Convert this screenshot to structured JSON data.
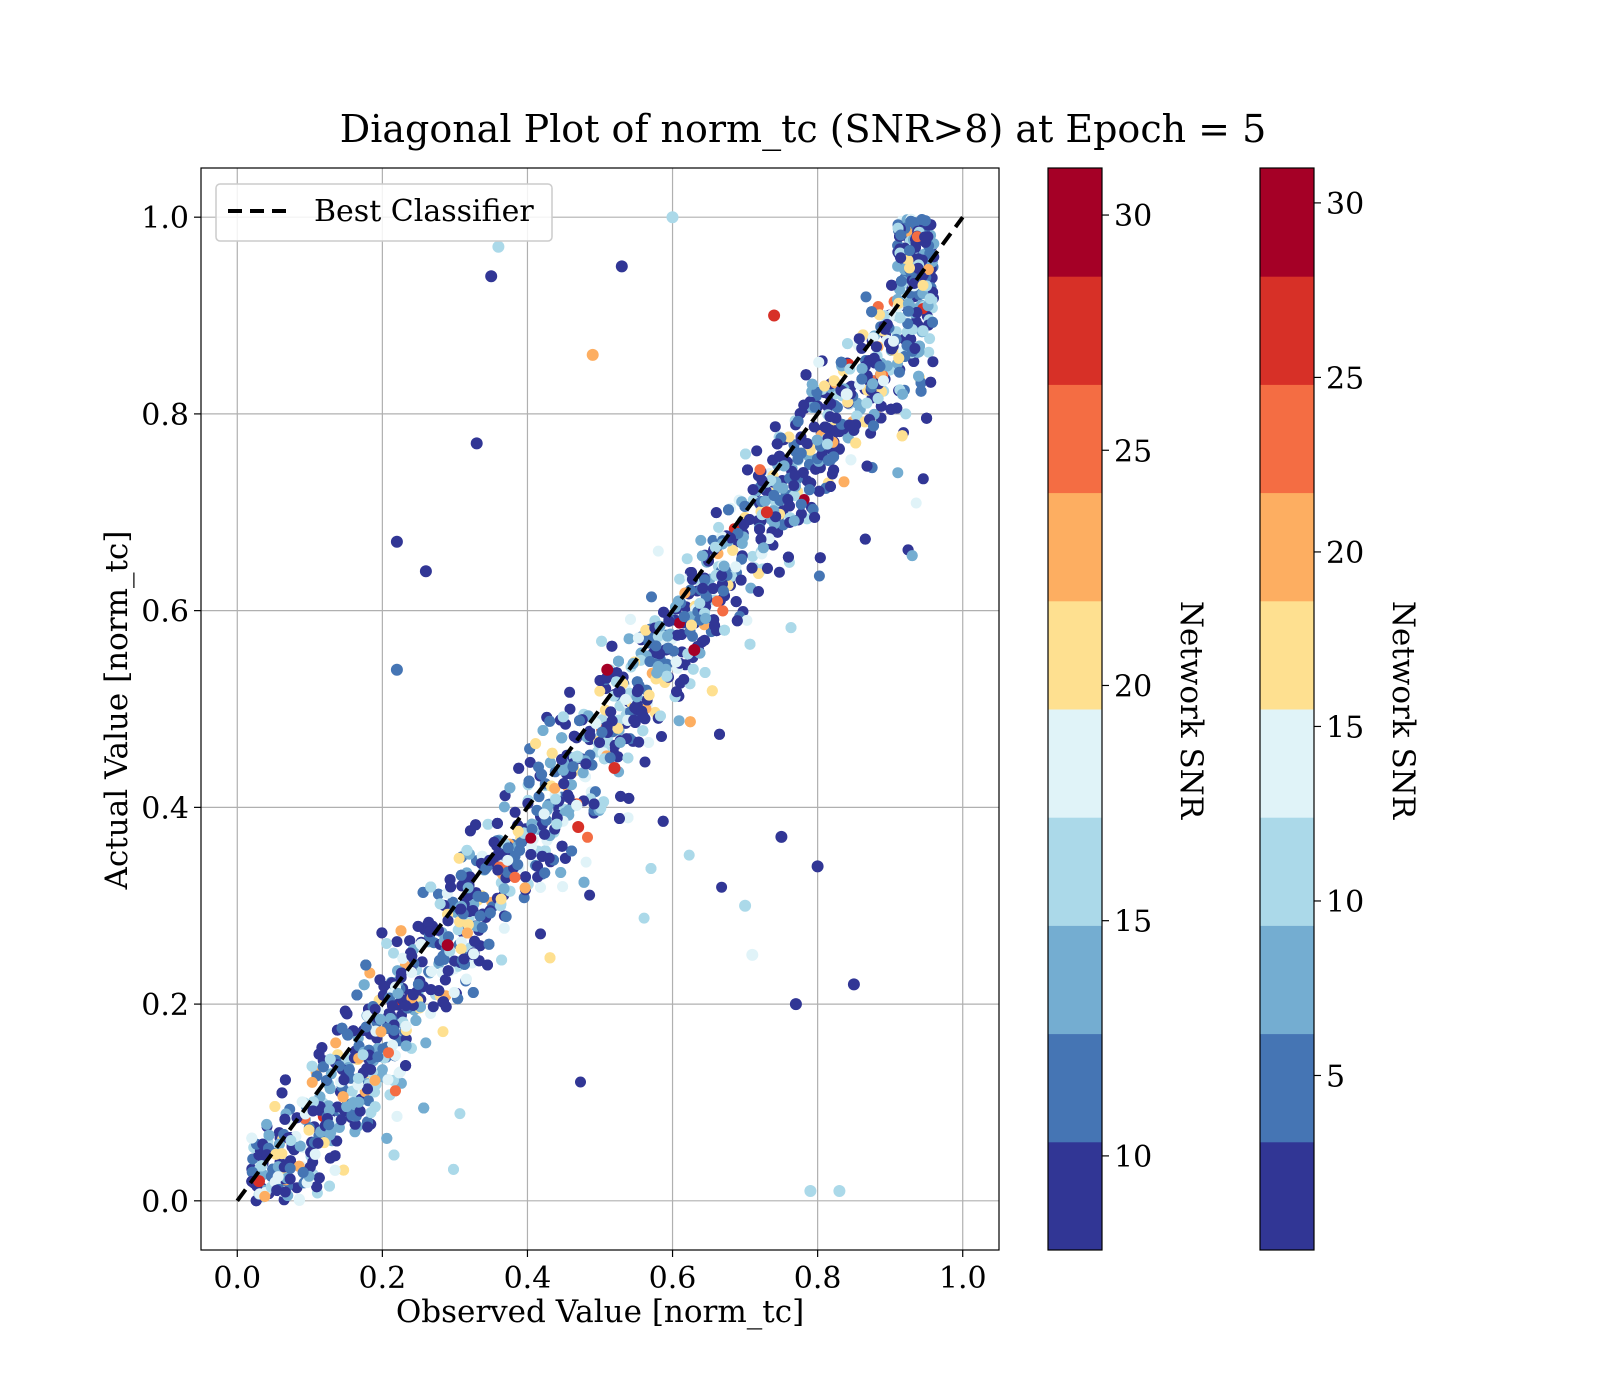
{
  "chart_data": {
    "type": "scatter",
    "title": "Diagonal Plot of norm_tc (SNR>8) at Epoch = 5",
    "xlabel": "Observed Value [norm_tc]",
    "ylabel": "Actual Value [norm_tc]",
    "xlim": [
      -0.05,
      1.05
    ],
    "ylim": [
      -0.05,
      1.05
    ],
    "xticks": [
      "0.0",
      "0.2",
      "0.4",
      "0.6",
      "0.8",
      "1.0"
    ],
    "yticks": [
      "0.0",
      "0.2",
      "0.4",
      "0.6",
      "0.8",
      "1.0"
    ],
    "grid": true,
    "legend": {
      "placement": "upper-left",
      "entries": [
        {
          "label": "Best Classifier",
          "style": "black dashed line"
        }
      ]
    },
    "reference_line": {
      "label": "Best Classifier",
      "x": [
        0.0,
        1.0
      ],
      "y": [
        0.0,
        1.0
      ],
      "color": "#000000"
    },
    "colormap": "RdYlBu_r discrete (10 bins)",
    "bin_colors": [
      "#313695",
      "#4575b4",
      "#74add1",
      "#abd9e9",
      "#e0f3f8",
      "#fee090",
      "#fdae61",
      "#f46d43",
      "#d73027",
      "#a50026"
    ],
    "colorbars": [
      {
        "label": "Network SNR",
        "range": [
          8,
          31
        ],
        "ticks": [
          "10",
          "15",
          "20",
          "25",
          "30"
        ]
      },
      {
        "label": "Network SNR",
        "range": [
          0,
          31
        ],
        "ticks": [
          "5",
          "10",
          "15",
          "20",
          "25",
          "30"
        ]
      }
    ],
    "notable_points": [
      {
        "x": 0.36,
        "y": 0.97,
        "snr": 16
      },
      {
        "x": 0.35,
        "y": 0.94,
        "snr": 10
      },
      {
        "x": 0.33,
        "y": 0.77,
        "snr": 10
      },
      {
        "x": 0.22,
        "y": 0.67,
        "snr": 9
      },
      {
        "x": 0.26,
        "y": 0.64,
        "snr": 9
      },
      {
        "x": 0.22,
        "y": 0.54,
        "snr": 12
      },
      {
        "x": 0.49,
        "y": 0.86,
        "snr": 22
      },
      {
        "x": 0.53,
        "y": 0.95,
        "snr": 9
      },
      {
        "x": 0.29,
        "y": 0.26,
        "snr": 30
      },
      {
        "x": 0.63,
        "y": 0.56,
        "snr": 30
      },
      {
        "x": 0.51,
        "y": 0.54,
        "snr": 30
      },
      {
        "x": 0.47,
        "y": 0.38,
        "snr": 28
      },
      {
        "x": 0.52,
        "y": 0.44,
        "snr": 28
      },
      {
        "x": 0.74,
        "y": 0.9,
        "snr": 28
      },
      {
        "x": 0.73,
        "y": 0.7,
        "snr": 28
      },
      {
        "x": 0.85,
        "y": 0.22,
        "snr": 10
      },
      {
        "x": 0.8,
        "y": 0.34,
        "snr": 10
      },
      {
        "x": 0.77,
        "y": 0.2,
        "snr": 10
      },
      {
        "x": 0.75,
        "y": 0.37,
        "snr": 10
      },
      {
        "x": 0.79,
        "y": 0.01,
        "snr": 15
      },
      {
        "x": 0.83,
        "y": 0.01,
        "snr": 17
      },
      {
        "x": 0.03,
        "y": 0.02,
        "snr": 28
      },
      {
        "x": 0.71,
        "y": 0.25,
        "snr": 18
      },
      {
        "x": 0.7,
        "y": 0.3,
        "snr": 16
      },
      {
        "x": 0.6,
        "y": 1.0,
        "snr": 15
      },
      {
        "x": 0.84,
        "y": 0.82,
        "snr": 18
      }
    ]
  }
}
